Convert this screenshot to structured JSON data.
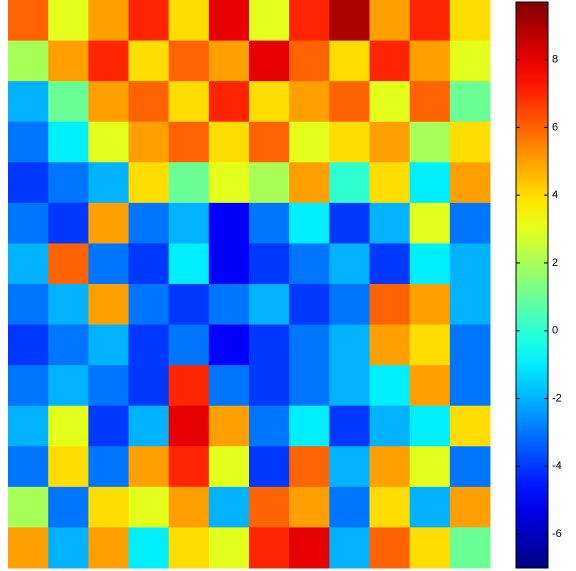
{
  "chart_data": {
    "type": "heatmap",
    "colormap": "jet",
    "values": [
      [
        6,
        3,
        5,
        7,
        4,
        8,
        3,
        7,
        9,
        5,
        7,
        4
      ],
      [
        2,
        5,
        7,
        4,
        6,
        5,
        8,
        6,
        4,
        7,
        5,
        3
      ],
      [
        -2,
        1,
        5,
        6,
        4,
        7,
        4,
        5,
        6,
        3,
        6,
        1
      ],
      [
        -3,
        -1,
        3,
        5,
        6,
        4,
        6,
        3,
        4,
        5,
        2,
        4
      ],
      [
        -4,
        -3,
        -2,
        4,
        1,
        3,
        2,
        5,
        0,
        4,
        -1,
        5
      ],
      [
        -3,
        -4,
        5,
        -3,
        -2,
        -5,
        -3,
        -1,
        -4,
        -2,
        3,
        -3
      ],
      [
        -2,
        6,
        -3,
        -4,
        -1,
        -5,
        -4,
        -3,
        -2,
        -4,
        -1,
        -2
      ],
      [
        -3,
        -2,
        5,
        -3,
        -4,
        -3,
        -2,
        -4,
        -3,
        6,
        5,
        -2
      ],
      [
        -4,
        -3,
        -2,
        -4,
        -3,
        -5,
        -4,
        -3,
        -2,
        5,
        4,
        -3
      ],
      [
        -3,
        -2,
        -3,
        -4,
        7,
        -3,
        -4,
        -3,
        -2,
        -1,
        5,
        -3
      ],
      [
        -2,
        3,
        -4,
        -2,
        8,
        5,
        -3,
        -1,
        -4,
        -2,
        -1,
        4
      ],
      [
        -3,
        4,
        -3,
        5,
        7,
        3,
        -4,
        6,
        -2,
        5,
        3,
        -3
      ],
      [
        2,
        -3,
        4,
        3,
        5,
        -2,
        6,
        5,
        -3,
        4,
        -2,
        5
      ],
      [
        5,
        -2,
        5,
        -1,
        4,
        3,
        7,
        8,
        -2,
        6,
        4,
        1
      ]
    ],
    "zlim": [
      -7,
      9.7
    ],
    "zticks": [
      -6,
      -4,
      -2,
      0,
      2,
      4,
      6,
      8
    ]
  }
}
